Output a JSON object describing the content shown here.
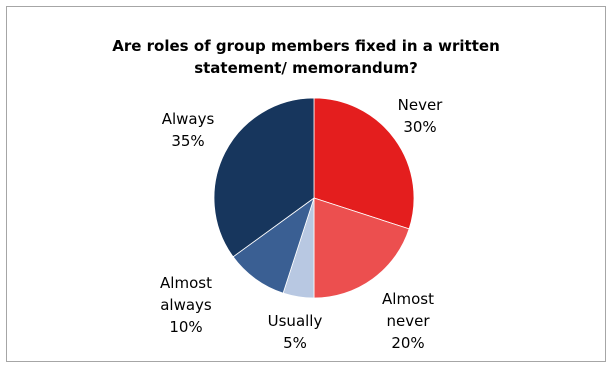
{
  "chart_data": {
    "type": "pie",
    "title_lines": [
      "Are roles of group members fixed in a written",
      "statement/ memorandum?"
    ],
    "start_angle_deg": 0,
    "direction": "clockwise",
    "slices": [
      {
        "name": "Never",
        "value": 30,
        "label_lines": [
          "Never",
          "30%"
        ],
        "color": "#e41e1e"
      },
      {
        "name": "Almost never",
        "value": 20,
        "label_lines": [
          "Almost",
          "never",
          "20%"
        ],
        "color": "#ec4f4f"
      },
      {
        "name": "Usually",
        "value": 5,
        "label_lines": [
          "Usually",
          "5%"
        ],
        "color": "#b8c8e2"
      },
      {
        "name": "Almost always",
        "value": 10,
        "label_lines": [
          "Almost",
          "always",
          "10%"
        ],
        "color": "#3a5f93"
      },
      {
        "name": "Always",
        "value": 35,
        "label_lines": [
          "Always",
          "35%"
        ],
        "color": "#17365d"
      }
    ],
    "legend": "none"
  }
}
